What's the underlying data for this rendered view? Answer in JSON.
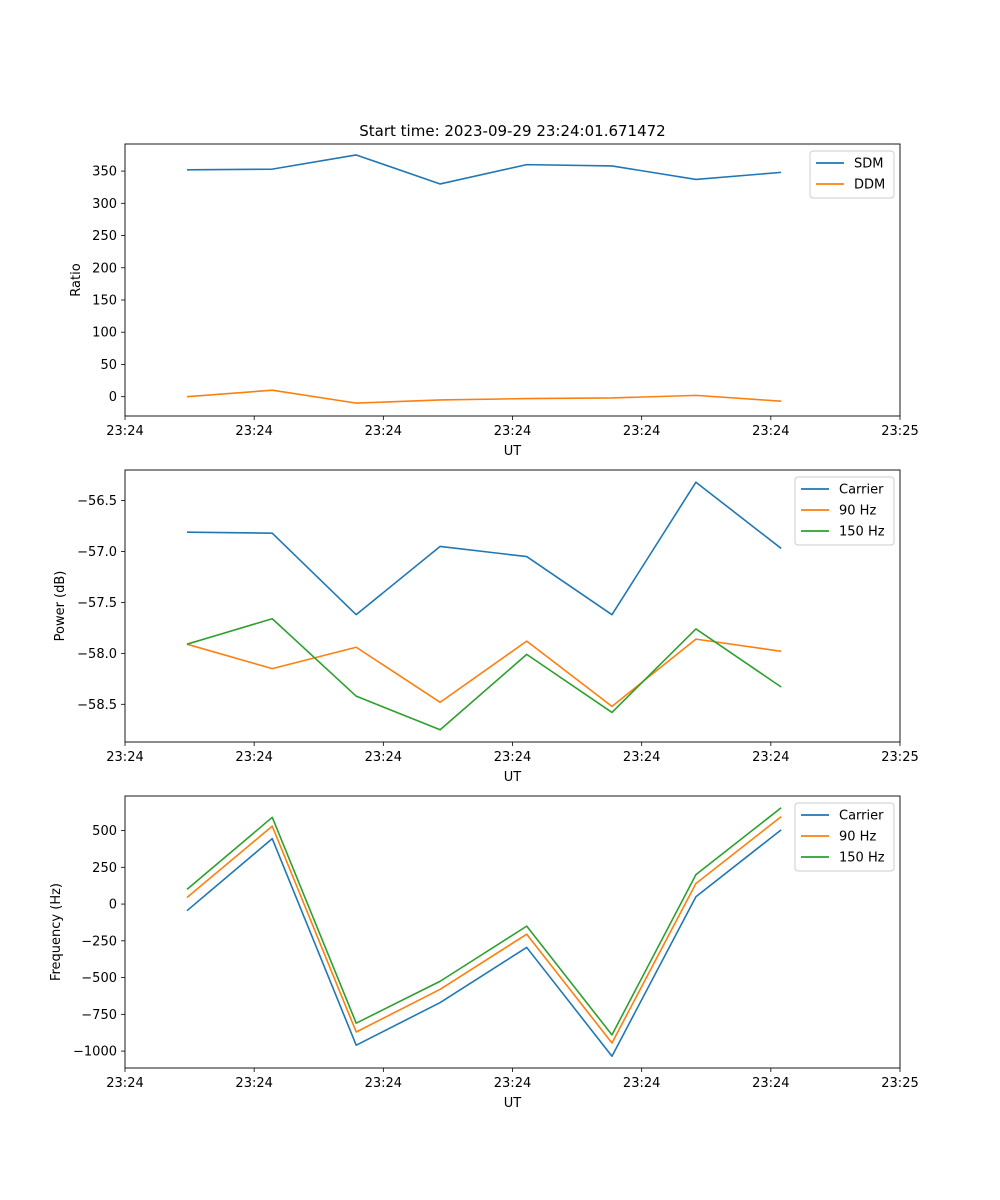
{
  "figure_title": "Start time: 2023-09-29 23:24:01.671472",
  "chart_data": [
    {
      "type": "line",
      "title": "Start time: 2023-09-29 23:24:01.671472",
      "xlabel": "UT",
      "ylabel": "Ratio",
      "xlim": [
        0,
        6
      ],
      "xtick_values": [
        0,
        1,
        2,
        3,
        4,
        5,
        6
      ],
      "xtick_labels": [
        "23:24",
        "23:24",
        "23:24",
        "23:24",
        "23:24",
        "23:24",
        "23:25"
      ],
      "ylim": [
        -30,
        392
      ],
      "yticks": [
        0,
        50,
        100,
        150,
        200,
        250,
        300,
        350
      ],
      "x": [
        0.48,
        1.14,
        1.79,
        2.44,
        3.11,
        3.77,
        4.42,
        5.08
      ],
      "legend_position": "upper right",
      "series": [
        {
          "name": "SDM",
          "color": "#1f77b4",
          "values": [
            352,
            353,
            375,
            330,
            360,
            358,
            337,
            348
          ]
        },
        {
          "name": "DDM",
          "color": "#ff7f0e",
          "values": [
            0,
            10,
            -10,
            -5,
            -3,
            -2,
            2,
            -7
          ]
        }
      ]
    },
    {
      "type": "line",
      "title": "",
      "xlabel": "UT",
      "ylabel": "Power (dB)",
      "xlim": [
        0,
        6
      ],
      "xtick_values": [
        0,
        1,
        2,
        3,
        4,
        5,
        6
      ],
      "xtick_labels": [
        "23:24",
        "23:24",
        "23:24",
        "23:24",
        "23:24",
        "23:24",
        "23:25"
      ],
      "ylim": [
        -58.87,
        -56.2
      ],
      "yticks": [
        -58.5,
        -58.0,
        -57.5,
        -57.0,
        -56.5
      ],
      "ytick_labels": [
        "−58.5",
        "−58.0",
        "−57.5",
        "−57.0",
        "−56.5"
      ],
      "x": [
        0.48,
        1.14,
        1.79,
        2.44,
        3.11,
        3.77,
        4.42,
        5.08
      ],
      "legend_position": "upper right",
      "series": [
        {
          "name": "Carrier",
          "color": "#1f77b4",
          "values": [
            -56.81,
            -56.82,
            -57.62,
            -56.95,
            -57.05,
            -57.62,
            -56.32,
            -56.97
          ]
        },
        {
          "name": "90 Hz",
          "color": "#ff7f0e",
          "values": [
            -57.91,
            -58.15,
            -57.94,
            -58.48,
            -57.88,
            -58.52,
            -57.86,
            -57.98
          ]
        },
        {
          "name": "150 Hz",
          "color": "#2ca02c",
          "values": [
            -57.91,
            -57.66,
            -58.42,
            -58.75,
            -58.01,
            -58.58,
            -57.76,
            -58.33
          ]
        }
      ]
    },
    {
      "type": "line",
      "title": "",
      "xlabel": "UT",
      "ylabel": "Frequency (Hz)",
      "xlim": [
        0,
        6
      ],
      "xtick_values": [
        0,
        1,
        2,
        3,
        4,
        5,
        6
      ],
      "xtick_labels": [
        "23:24",
        "23:24",
        "23:24",
        "23:24",
        "23:24",
        "23:24",
        "23:25"
      ],
      "ylim": [
        -1115,
        735
      ],
      "yticks": [
        -1000,
        -750,
        -500,
        -250,
        0,
        250,
        500
      ],
      "ytick_labels": [
        "−1000",
        "−750",
        "−500",
        "−250",
        "0",
        "250",
        "500"
      ],
      "x": [
        0.48,
        1.14,
        1.79,
        2.44,
        3.11,
        3.77,
        4.42,
        5.08
      ],
      "legend_position": "upper right",
      "series": [
        {
          "name": "Carrier",
          "color": "#1f77b4",
          "values": [
            -45,
            445,
            -960,
            -670,
            -295,
            -1035,
            50,
            505
          ]
        },
        {
          "name": "90 Hz",
          "color": "#ff7f0e",
          "values": [
            45,
            530,
            -870,
            -580,
            -205,
            -945,
            140,
            595
          ]
        },
        {
          "name": "150 Hz",
          "color": "#2ca02c",
          "values": [
            100,
            590,
            -810,
            -525,
            -150,
            -890,
            200,
            655
          ]
        }
      ]
    }
  ]
}
